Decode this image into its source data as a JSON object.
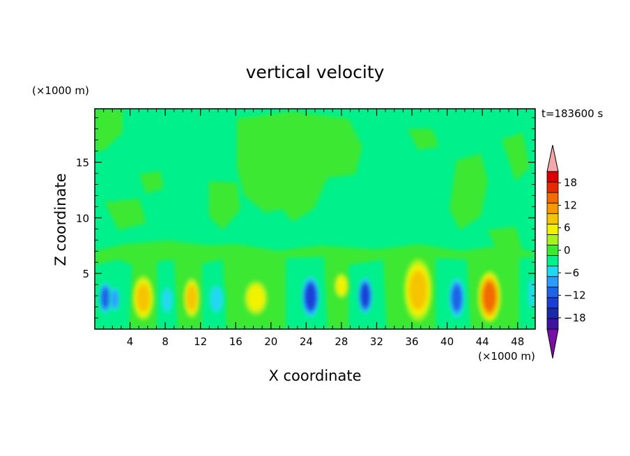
{
  "chart_data": {
    "type": "heatmap",
    "title": "vertical velocity",
    "xlabel": "X coordinate",
    "ylabel": "Z coordinate",
    "x_unit": "(×1000 m)",
    "y_unit": "(×1000 m)",
    "time_label": "t=183600 s",
    "xlim": [
      0,
      50
    ],
    "ylim": [
      0,
      19.8
    ],
    "x_ticks": [
      4,
      8,
      12,
      16,
      20,
      24,
      28,
      32,
      36,
      40,
      44,
      48
    ],
    "y_ticks": [
      5,
      10,
      15
    ],
    "colorbar": {
      "levels": [
        -21,
        -18,
        -15,
        -12,
        -9,
        -6,
        -3,
        0,
        3,
        6,
        9,
        12,
        15,
        18,
        21
      ],
      "tick_labels": [
        18,
        12,
        6,
        0,
        -6,
        -12,
        -18
      ],
      "colors": [
        "#7a0fa8",
        "#3c14a0",
        "#1a2aa8",
        "#1a3fd6",
        "#1e64e6",
        "#2a9bff",
        "#22d8f0",
        "#00f08c",
        "#3ce832",
        "#a6f21e",
        "#f2f200",
        "#f6c400",
        "#f69a00",
        "#f26a00",
        "#e62a00",
        "#d80000",
        "#f2a8a8"
      ]
    },
    "cells": [
      {
        "x": 1.2,
        "z": 2.8,
        "w": 0.8,
        "h": 1.6,
        "v": -10
      },
      {
        "x": 2.3,
        "z": 2.7,
        "w": 0.6,
        "h": 1.3,
        "v": -8
      },
      {
        "x": 5.5,
        "z": 2.8,
        "w": 1.2,
        "h": 2.0,
        "v": 9
      },
      {
        "x": 8.2,
        "z": 2.6,
        "w": 0.8,
        "h": 1.5,
        "v": -5
      },
      {
        "x": 11.0,
        "z": 2.8,
        "w": 1.0,
        "h": 2.0,
        "v": 10
      },
      {
        "x": 13.8,
        "z": 2.7,
        "w": 1.0,
        "h": 1.6,
        "v": -4
      },
      {
        "x": 18.3,
        "z": 2.8,
        "w": 1.5,
        "h": 1.8,
        "v": 8
      },
      {
        "x": 24.5,
        "z": 2.9,
        "w": 1.1,
        "h": 2.0,
        "v": -14
      },
      {
        "x": 28.0,
        "z": 3.9,
        "w": 0.9,
        "h": 1.3,
        "v": 7
      },
      {
        "x": 30.7,
        "z": 3.0,
        "w": 0.9,
        "h": 1.8,
        "v": -13
      },
      {
        "x": 36.7,
        "z": 3.5,
        "w": 1.6,
        "h": 2.8,
        "v": 9
      },
      {
        "x": 41.1,
        "z": 2.8,
        "w": 1.0,
        "h": 2.0,
        "v": -12
      },
      {
        "x": 44.8,
        "z": 2.9,
        "w": 1.3,
        "h": 2.3,
        "v": 15
      },
      {
        "x": 49.6,
        "z": 3.2,
        "w": 0.5,
        "h": 1.8,
        "v": -5
      }
    ]
  }
}
